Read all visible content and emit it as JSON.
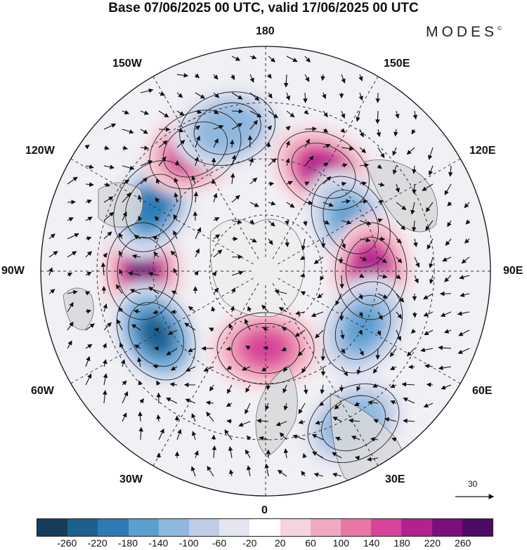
{
  "title": "Base 07/06/2025 00 UTC, valid 17/06/2025 00 UTC",
  "brand": "MODES",
  "brand_mark": "©",
  "lon_labels": {
    "l180": "180",
    "l150e": "150E",
    "l120e": "120E",
    "l90e": "90E",
    "l60e": "60E",
    "l30e": "30E",
    "l0": "0",
    "l30w": "30W",
    "l60w": "60W",
    "l90w": "90W",
    "l120w": "120W",
    "l150w": "150W"
  },
  "reference_vector": {
    "value": "30"
  },
  "colorbar": {
    "colors": [
      "#173c5a",
      "#1d5f8e",
      "#2c7bb6",
      "#5a9fcf",
      "#8fb8df",
      "#bfcde7",
      "#e3e5f1",
      "#ffffff",
      "#f7d4dd",
      "#f1a9bf",
      "#e877a6",
      "#d6449a",
      "#b0228c",
      "#7d0e7d",
      "#4e0a67"
    ],
    "ticks": [
      "-260",
      "-220",
      "-180",
      "-140",
      "-100",
      "-60",
      "-20",
      "20",
      "60",
      "100",
      "140",
      "180",
      "220",
      "260"
    ]
  },
  "map_data": {
    "center": "North Pole",
    "projection": "polar stereographic",
    "field": "geopotential height anomaly with wind vectors",
    "anomalies": [
      {
        "sign": "positive",
        "strength": 220,
        "lon": "90W"
      },
      {
        "sign": "negative",
        "strength": -240,
        "lon": "60W"
      },
      {
        "sign": "negative",
        "strength": -200,
        "lon": "120W"
      },
      {
        "sign": "positive",
        "strength": 200,
        "lon": "150W"
      },
      {
        "sign": "negative",
        "strength": -140,
        "lon": "170W"
      },
      {
        "sign": "positive",
        "strength": 200,
        "lon": "150E"
      },
      {
        "sign": "negative",
        "strength": -180,
        "lon": "120E"
      },
      {
        "sign": "positive",
        "strength": 200,
        "lon": "90E"
      },
      {
        "sign": "negative",
        "strength": -160,
        "lon": "60E"
      },
      {
        "sign": "positive",
        "strength": 160,
        "lon": "0"
      },
      {
        "sign": "negative",
        "strength": -140,
        "lon": "30E"
      }
    ]
  }
}
